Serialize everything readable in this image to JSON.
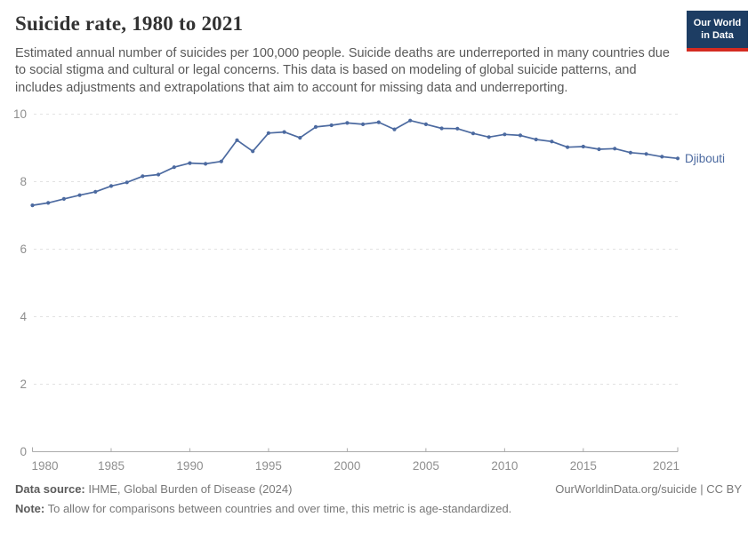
{
  "header": {
    "title": "Suicide rate, 1980 to 2021",
    "subtitle": "Estimated annual number of suicides per 100,000 people. Suicide deaths are underreported in many countries due to social stigma and cultural or legal concerns. This data is based on modeling of global suicide patterns, and includes adjustments and extrapolations that aim to account for missing data and underreporting.",
    "logo": {
      "line1": "Our World",
      "line2": "in Data",
      "bg": "#1d3d63",
      "stripe": "#d42b21"
    }
  },
  "chart_data": {
    "type": "line",
    "title": "Suicide rate, 1980 to 2021",
    "xlabel": "",
    "ylabel": "",
    "unit": "suicides per 100,000 people",
    "xlim": [
      1980,
      2021
    ],
    "ylim": [
      0,
      10
    ],
    "xticks": [
      1980,
      1985,
      1990,
      1995,
      2000,
      2005,
      2010,
      2015,
      2021
    ],
    "yticks": [
      0,
      2,
      4,
      6,
      8,
      10
    ],
    "grid": "horizontal-dashed",
    "legend": "end-of-line-label",
    "x": [
      1980,
      1981,
      1982,
      1983,
      1984,
      1985,
      1986,
      1987,
      1988,
      1989,
      1990,
      1991,
      1992,
      1993,
      1994,
      1995,
      1996,
      1997,
      1998,
      1999,
      2000,
      2001,
      2002,
      2003,
      2004,
      2005,
      2006,
      2007,
      2008,
      2009,
      2010,
      2011,
      2012,
      2013,
      2014,
      2015,
      2016,
      2017,
      2018,
      2019,
      2020,
      2021
    ],
    "series": [
      {
        "name": "Djibouti",
        "color": "#4c6aa0",
        "values": [
          7.3,
          7.37,
          7.49,
          7.6,
          7.7,
          7.87,
          7.98,
          8.16,
          8.21,
          8.43,
          8.55,
          8.53,
          8.6,
          9.23,
          8.9,
          9.44,
          9.47,
          9.3,
          9.62,
          9.67,
          9.74,
          9.7,
          9.76,
          9.55,
          9.81,
          9.7,
          9.58,
          9.57,
          9.43,
          9.32,
          9.4,
          9.37,
          9.25,
          9.19,
          9.02,
          9.04,
          8.96,
          8.98,
          8.86,
          8.82,
          8.74,
          8.69
        ]
      }
    ],
    "colors": {
      "grid": "#e2e2e2",
      "axis": "#ababab",
      "tick_label": "#8f8f8f",
      "series_label": "#4c6aa0"
    }
  },
  "footer": {
    "datasource_label": "Data source:",
    "datasource": " IHME, Global Burden of Disease (2024)",
    "note_label": "Note:",
    "note": " To allow for comparisons between countries and over time, this metric is age-standardized.",
    "link": "OurWorldinData.org/suicide | CC BY"
  }
}
